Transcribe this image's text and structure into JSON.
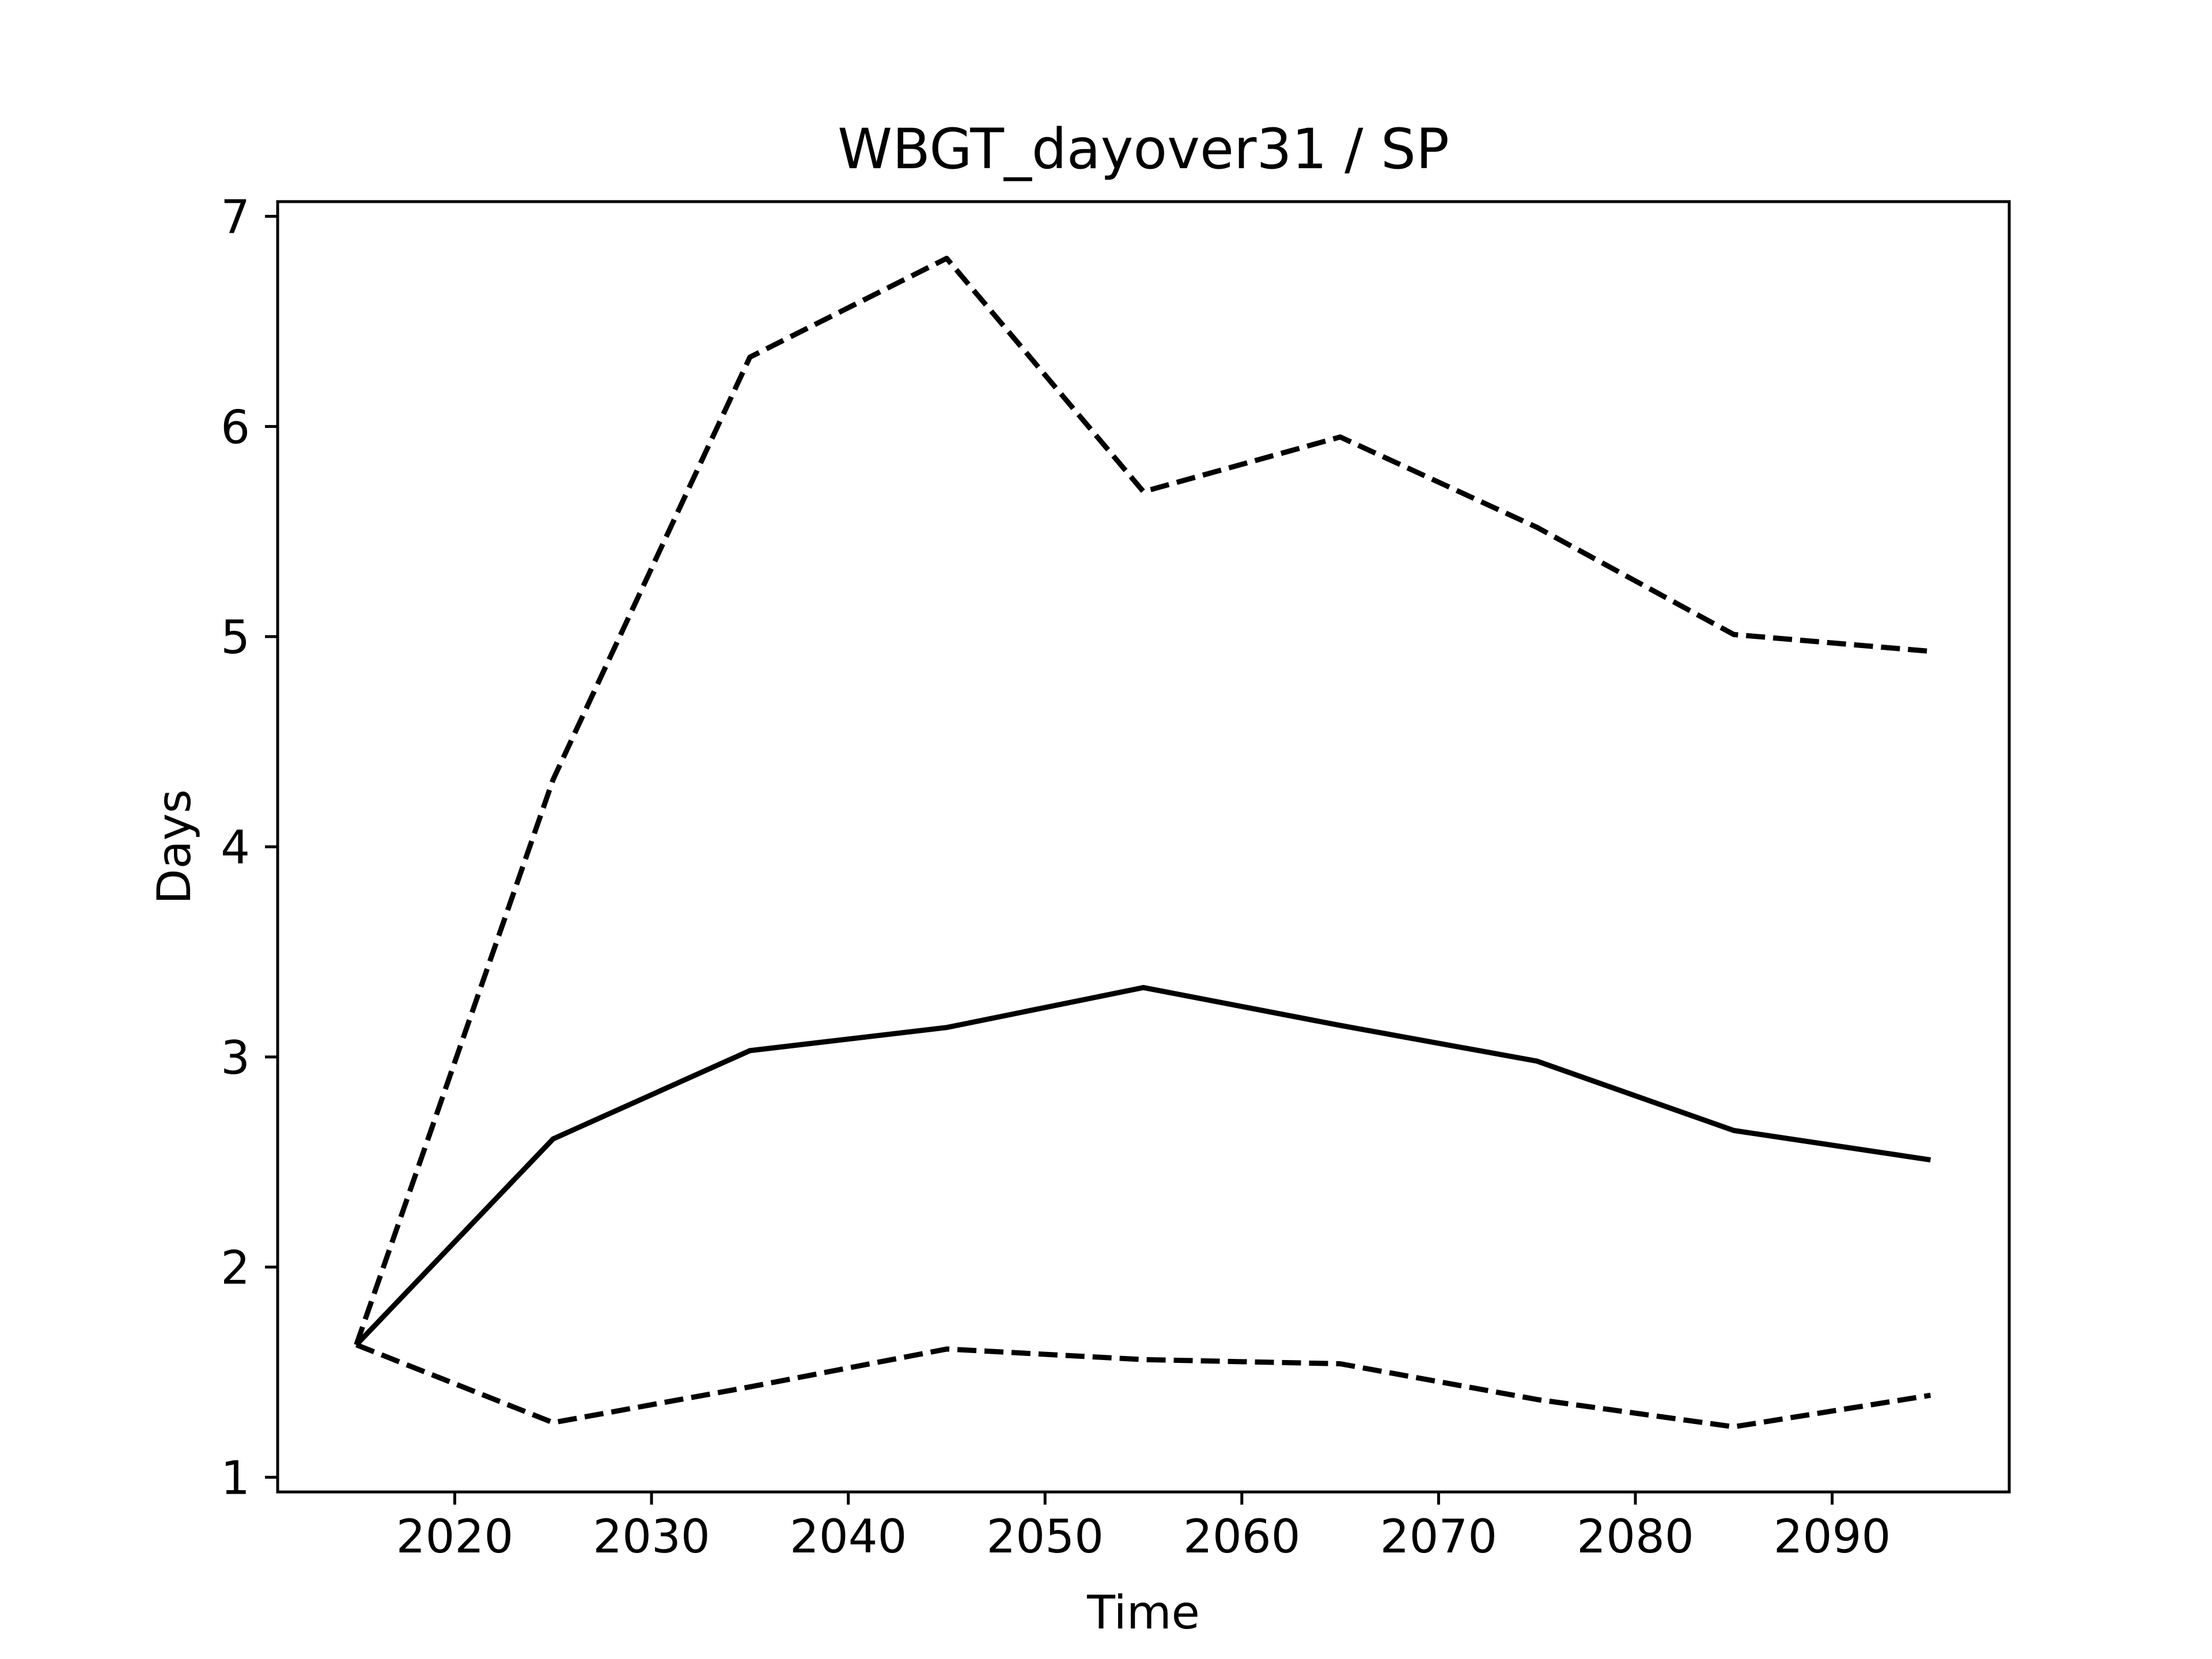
{
  "chart_data": {
    "type": "line",
    "title": "WBGT_dayover31 / SP",
    "xlabel": "Time",
    "ylabel": "Days",
    "xlim": [
      2011,
      2099
    ],
    "ylim": [
      0.93,
      7.07
    ],
    "x_ticks": [
      2020,
      2030,
      2040,
      2050,
      2060,
      2070,
      2080,
      2090
    ],
    "y_ticks": [
      1,
      2,
      3,
      4,
      5,
      6,
      7
    ],
    "grid": false,
    "x": [
      2015,
      2025,
      2035,
      2045,
      2055,
      2065,
      2075,
      2085,
      2095
    ],
    "series": [
      {
        "values": [
          1.63,
          2.61,
          3.03,
          3.14,
          3.33,
          3.15,
          2.98,
          2.65,
          2.51
        ],
        "style": "solid",
        "color": "#000000"
      },
      {
        "values": [
          1.63,
          4.32,
          6.33,
          6.8,
          5.69,
          5.95,
          5.52,
          5.01,
          4.93
        ],
        "style": "dashed",
        "color": "#000000"
      },
      {
        "values": [
          1.63,
          1.26,
          1.43,
          1.61,
          1.56,
          1.54,
          1.37,
          1.24,
          1.39
        ],
        "style": "dashed",
        "color": "#000000"
      }
    ]
  }
}
